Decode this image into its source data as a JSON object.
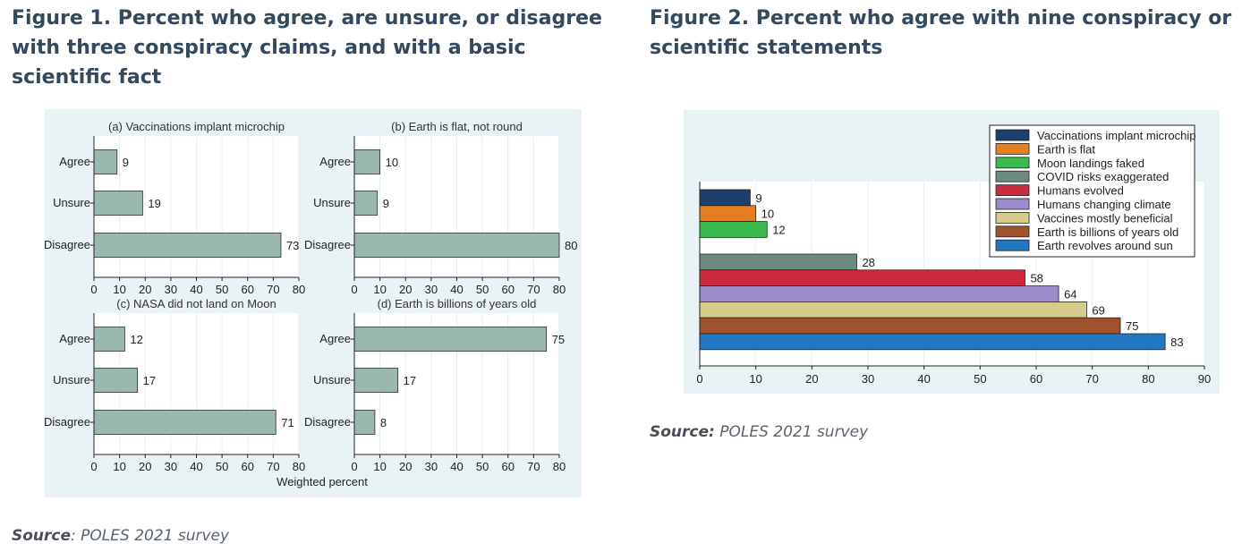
{
  "figure1": {
    "title": "Figure 1. Percent who agree, are unsure, or disagree with three conspiracy claims, and with a basic scientific fact",
    "source_label": "Source",
    "source_text": ": POLES 2021 survey"
  },
  "figure2": {
    "title": "Figure 2. Percent who agree with nine conspiracy or scientific statements",
    "source_label": "Source:",
    "source_text": " POLES 2021 survey"
  },
  "colors": {
    "fig1_bar": "#9bb8ae",
    "series": [
      "#1b3f6e",
      "#e67e22",
      "#3dba4e",
      "#6e8a80",
      "#cc2a3e",
      "#9b8bc8",
      "#d6cc8c",
      "#a0512d",
      "#1f78c1"
    ]
  },
  "chart_data": [
    {
      "type": "bar",
      "orientation": "horizontal",
      "title": "(a) Vaccinations implant microchip",
      "categories": [
        "Agree",
        "Unsure",
        "Disagree"
      ],
      "values": [
        9,
        19,
        73
      ],
      "xlim": [
        0,
        80
      ],
      "xticks": [
        0,
        10,
        20,
        30,
        40,
        50,
        60,
        70,
        80
      ],
      "xlabel": "",
      "grid": true
    },
    {
      "type": "bar",
      "orientation": "horizontal",
      "title": "(b) Earth is flat, not round",
      "categories": [
        "Agree",
        "Unsure",
        "Disagree"
      ],
      "values": [
        10,
        9,
        80
      ],
      "xlim": [
        0,
        80
      ],
      "xticks": [
        0,
        10,
        20,
        30,
        40,
        50,
        60,
        70,
        80
      ],
      "xlabel": "",
      "grid": true
    },
    {
      "type": "bar",
      "orientation": "horizontal",
      "title": "(c) NASA did not land on Moon",
      "categories": [
        "Agree",
        "Unsure",
        "Disagree"
      ],
      "values": [
        12,
        17,
        71
      ],
      "xlim": [
        0,
        80
      ],
      "xticks": [
        0,
        10,
        20,
        30,
        40,
        50,
        60,
        70,
        80
      ],
      "xlabel": "",
      "grid": true
    },
    {
      "type": "bar",
      "orientation": "horizontal",
      "title": "(d) Earth is billions of years old",
      "categories": [
        "Agree",
        "Unsure",
        "Disagree"
      ],
      "values": [
        75,
        17,
        8
      ],
      "xlim": [
        0,
        80
      ],
      "xticks": [
        0,
        10,
        20,
        30,
        40,
        50,
        60,
        70,
        80
      ],
      "xlabel": "",
      "grid": true
    },
    {
      "type": "bar",
      "orientation": "horizontal",
      "shared_xlabel": "Weighted percent"
    },
    {
      "type": "bar",
      "orientation": "horizontal",
      "title": "",
      "xlim": [
        0,
        90
      ],
      "xticks": [
        0,
        10,
        20,
        30,
        40,
        50,
        60,
        70,
        80,
        90
      ],
      "grid": true,
      "legend": "top-right",
      "groups": [
        [
          0,
          1,
          2
        ],
        [
          3,
          4,
          5,
          6,
          7,
          8
        ]
      ],
      "series": [
        {
          "name": "Vaccinations implant microchip",
          "value": 9
        },
        {
          "name": "Earth is flat",
          "value": 10
        },
        {
          "name": "Moon landings faked",
          "value": 12
        },
        {
          "name": "COVID risks exaggerated",
          "value": 28
        },
        {
          "name": "Humans evolved",
          "value": 58
        },
        {
          "name": "Humans changing climate",
          "value": 64
        },
        {
          "name": "Vaccines mostly beneficial",
          "value": 69
        },
        {
          "name": "Earth is billions of years old",
          "value": 75
        },
        {
          "name": "Earth revolves around sun",
          "value": 83
        }
      ]
    }
  ]
}
